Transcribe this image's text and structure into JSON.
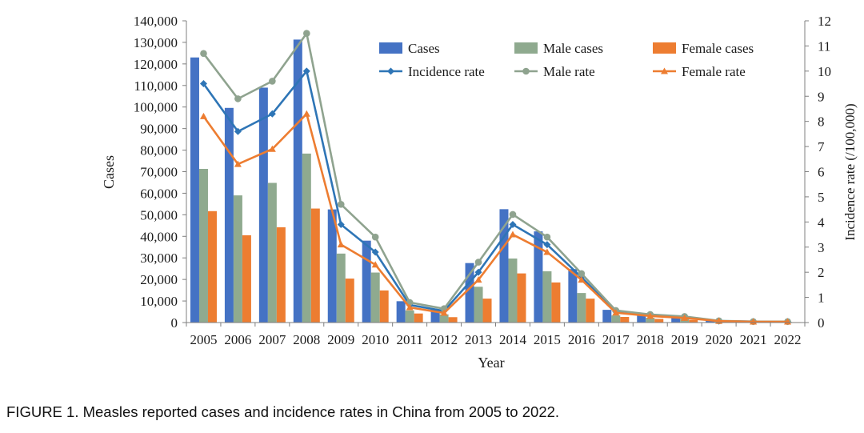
{
  "caption": "FIGURE 1. Measles reported cases and incidence rates in China from 2005 to 2022.",
  "chart_data": {
    "type": "bar+line",
    "xlabel": "Year",
    "ylabel": "Cases",
    "y2label": "Incidence rate (/100,000)",
    "ylim": [
      0,
      140000
    ],
    "y2lim": [
      0,
      12
    ],
    "yticks": [
      "0",
      "10,000",
      "20,000",
      "30,000",
      "40,000",
      "50,000",
      "60,000",
      "70,000",
      "80,000",
      "90,000",
      "100,000",
      "110,000",
      "120,000",
      "130,000",
      "140,000"
    ],
    "y2ticks": [
      "0",
      "1",
      "2",
      "3",
      "4",
      "5",
      "6",
      "7",
      "8",
      "9",
      "10",
      "11",
      "12"
    ],
    "grid": false,
    "legend": "top-right",
    "categories": [
      "2005",
      "2006",
      "2007",
      "2008",
      "2009",
      "2010",
      "2011",
      "2012",
      "2013",
      "2014",
      "2015",
      "2016",
      "2017",
      "2018",
      "2019",
      "2020",
      "2021",
      "2022"
    ],
    "bar_series": [
      {
        "name": "Cases",
        "color": "#4472c4",
        "axis": "left",
        "values": [
          123000,
          99600,
          109000,
          131300,
          52500,
          38000,
          9900,
          6200,
          27600,
          52600,
          42300,
          24800,
          5900,
          3900,
          2900,
          900,
          500,
          500
        ]
      },
      {
        "name": "Male cases",
        "color": "#8faa8f",
        "axis": "left",
        "values": [
          71300,
          59000,
          64800,
          78400,
          32000,
          23200,
          5600,
          3800,
          16600,
          29700,
          23800,
          13700,
          3300,
          2200,
          1700,
          500,
          300,
          300
        ]
      },
      {
        "name": "Female cases",
        "color": "#ed7d31",
        "axis": "left",
        "values": [
          51700,
          40500,
          44200,
          52900,
          20400,
          14900,
          4200,
          2500,
          11100,
          22800,
          18600,
          11100,
          2600,
          1700,
          1200,
          400,
          200,
          200
        ]
      }
    ],
    "line_series": [
      {
        "name": "Incidence rate",
        "color": "#2e75b6",
        "marker": "diamond",
        "axis": "right",
        "values": [
          9.5,
          7.6,
          8.3,
          10.0,
          3.9,
          2.8,
          0.7,
          0.46,
          2.0,
          3.9,
          3.1,
          1.8,
          0.43,
          0.28,
          0.21,
          0.06,
          0.04,
          0.04
        ]
      },
      {
        "name": "Male rate",
        "color": "#8fa38f",
        "marker": "circle",
        "axis": "right",
        "values": [
          10.7,
          8.9,
          9.6,
          11.5,
          4.7,
          3.4,
          0.8,
          0.55,
          2.4,
          4.3,
          3.4,
          1.95,
          0.48,
          0.32,
          0.24,
          0.07,
          0.04,
          0.04
        ]
      },
      {
        "name": "Female rate",
        "color": "#ed7d31",
        "marker": "triangle",
        "axis": "right",
        "values": [
          8.2,
          6.3,
          6.9,
          8.3,
          3.1,
          2.3,
          0.6,
          0.38,
          1.7,
          3.5,
          2.8,
          1.7,
          0.39,
          0.26,
          0.18,
          0.06,
          0.03,
          0.03
        ]
      }
    ]
  }
}
